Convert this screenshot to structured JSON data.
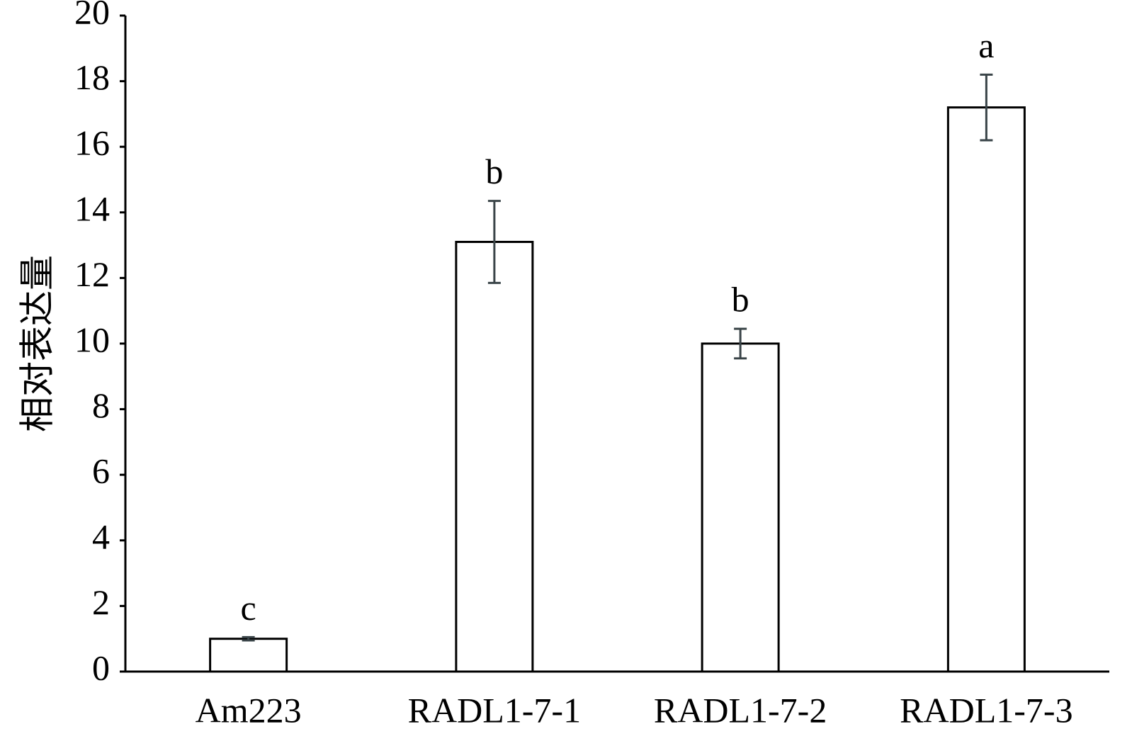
{
  "chart_data": {
    "type": "bar",
    "y_label": "相对表达量",
    "categories": [
      "Am223",
      "RADL1-7-1",
      "RADL1-7-2",
      "RADL1-7-3"
    ],
    "values": [
      1.0,
      13.1,
      10.0,
      17.2
    ],
    "errors": [
      0.05,
      1.25,
      0.45,
      1.0
    ],
    "letters": [
      "c",
      "b",
      "b",
      "a"
    ],
    "color": "#ffffff",
    "ylim": [
      0,
      20
    ],
    "yticks": [
      0,
      2,
      4,
      6,
      8,
      10,
      12,
      14,
      16,
      18,
      20
    ],
    "grid": false
  }
}
